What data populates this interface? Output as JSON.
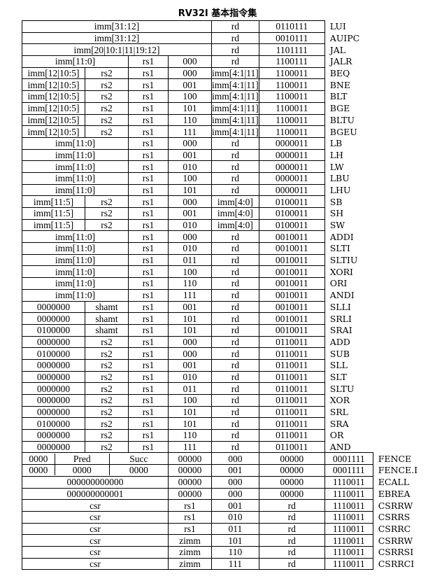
{
  "title": "RV32I 基本指令集",
  "rows": [
    [
      {
        "t": "imm[31:12]",
        "span": 4
      },
      {
        "t": "rd"
      },
      {
        "t": "0110111"
      },
      {
        "t": "LUI"
      }
    ],
    [
      {
        "t": "imm[31:12]",
        "span": 4
      },
      {
        "t": "rd"
      },
      {
        "t": "0010111"
      },
      {
        "t": "AUIPC"
      }
    ],
    [
      {
        "t": "imm[20|10:1|11|19:12]",
        "span": 4
      },
      {
        "t": "rd"
      },
      {
        "t": "1101111"
      },
      {
        "t": "JAL"
      }
    ],
    [
      {
        "t": "imm[11:0]",
        "span": 2
      },
      {
        "t": "rs1"
      },
      {
        "t": "000"
      },
      {
        "t": "rd"
      },
      {
        "t": "1100111"
      },
      {
        "t": "JALR"
      }
    ],
    [
      {
        "t": "imm[12|10:5]"
      },
      {
        "t": "rs2"
      },
      {
        "t": "rs1"
      },
      {
        "t": "000"
      },
      {
        "t": "imm[4:1|11]"
      },
      {
        "t": "1100011"
      },
      {
        "t": "BEQ"
      }
    ],
    [
      {
        "t": "imm[12|10:5]"
      },
      {
        "t": "rs2"
      },
      {
        "t": "rs1"
      },
      {
        "t": "001"
      },
      {
        "t": "imm[4:1|11]"
      },
      {
        "t": "1100011"
      },
      {
        "t": "BNE"
      }
    ],
    [
      {
        "t": "imm[12|10:5]"
      },
      {
        "t": "rs2"
      },
      {
        "t": "rs1"
      },
      {
        "t": "100"
      },
      {
        "t": "imm[4:1|11]"
      },
      {
        "t": "1100011"
      },
      {
        "t": "BLT"
      }
    ],
    [
      {
        "t": "imm[12|10:5]"
      },
      {
        "t": "rs2"
      },
      {
        "t": "rs1"
      },
      {
        "t": "101"
      },
      {
        "t": "imm[4:1|11]"
      },
      {
        "t": "1100011"
      },
      {
        "t": "BGE"
      }
    ],
    [
      {
        "t": "imm[12|10:5]"
      },
      {
        "t": "rs2"
      },
      {
        "t": "rs1"
      },
      {
        "t": "110"
      },
      {
        "t": "imm[4:1|11]"
      },
      {
        "t": "1100011"
      },
      {
        "t": "BLTU"
      }
    ],
    [
      {
        "t": "imm[12|10:5]"
      },
      {
        "t": "rs2"
      },
      {
        "t": "rs1"
      },
      {
        "t": "111"
      },
      {
        "t": "imm[4:1|11]"
      },
      {
        "t": "1100011"
      },
      {
        "t": "BGEU"
      }
    ],
    [
      {
        "t": "imm[11:0]",
        "span": 2
      },
      {
        "t": "rs1"
      },
      {
        "t": "000"
      },
      {
        "t": "rd"
      },
      {
        "t": "0000011"
      },
      {
        "t": "LB"
      }
    ],
    [
      {
        "t": "imm[11:0]",
        "span": 2
      },
      {
        "t": "rs1"
      },
      {
        "t": "001"
      },
      {
        "t": "rd"
      },
      {
        "t": "0000011"
      },
      {
        "t": "LH"
      }
    ],
    [
      {
        "t": "imm[11:0]",
        "span": 2
      },
      {
        "t": "rs1"
      },
      {
        "t": "010"
      },
      {
        "t": "rd"
      },
      {
        "t": "0000011"
      },
      {
        "t": "LW"
      }
    ],
    [
      {
        "t": "imm[11:0]",
        "span": 2
      },
      {
        "t": "rs1"
      },
      {
        "t": "100"
      },
      {
        "t": "rd"
      },
      {
        "t": "0000011"
      },
      {
        "t": "LBU"
      }
    ],
    [
      {
        "t": "imm[11:0]",
        "span": 2
      },
      {
        "t": "rs1"
      },
      {
        "t": "101"
      },
      {
        "t": "rd"
      },
      {
        "t": "0000011"
      },
      {
        "t": "LHU"
      }
    ],
    [
      {
        "t": "imm[11:5]"
      },
      {
        "t": "rs2"
      },
      {
        "t": "rs1"
      },
      {
        "t": "000"
      },
      {
        "t": "imm[4:0]"
      },
      {
        "t": "0100011"
      },
      {
        "t": "SB"
      }
    ],
    [
      {
        "t": "imm[11:5]"
      },
      {
        "t": "rs2"
      },
      {
        "t": "rs1"
      },
      {
        "t": "001"
      },
      {
        "t": "imm[4:0]"
      },
      {
        "t": "0100011"
      },
      {
        "t": "SH"
      }
    ],
    [
      {
        "t": "imm[11:5]"
      },
      {
        "t": "rs2"
      },
      {
        "t": "rs1"
      },
      {
        "t": "010"
      },
      {
        "t": "imm[4:0]"
      },
      {
        "t": "0100011"
      },
      {
        "t": "SW"
      }
    ],
    [
      {
        "t": "imm[11:0]",
        "span": 2
      },
      {
        "t": "rs1"
      },
      {
        "t": "000"
      },
      {
        "t": "rd"
      },
      {
        "t": "0010011"
      },
      {
        "t": "ADDI"
      }
    ],
    [
      {
        "t": "imm[11:0]",
        "span": 2
      },
      {
        "t": "rs1"
      },
      {
        "t": "010"
      },
      {
        "t": "rd"
      },
      {
        "t": "0010011"
      },
      {
        "t": "SLTI"
      }
    ],
    [
      {
        "t": "imm[11:0]",
        "span": 2
      },
      {
        "t": "rs1"
      },
      {
        "t": "011"
      },
      {
        "t": "rd"
      },
      {
        "t": "0010011"
      },
      {
        "t": "SLTIU"
      }
    ],
    [
      {
        "t": "imm[11:0]",
        "span": 2
      },
      {
        "t": "rs1"
      },
      {
        "t": "100"
      },
      {
        "t": "rd"
      },
      {
        "t": "0010011"
      },
      {
        "t": "XORI"
      }
    ],
    [
      {
        "t": "imm[11:0]",
        "span": 2
      },
      {
        "t": "rs1"
      },
      {
        "t": "110"
      },
      {
        "t": "rd"
      },
      {
        "t": "0010011"
      },
      {
        "t": "ORI"
      }
    ],
    [
      {
        "t": "imm[11:0]",
        "span": 2
      },
      {
        "t": "rs1"
      },
      {
        "t": "111"
      },
      {
        "t": "rd"
      },
      {
        "t": "0010011"
      },
      {
        "t": "ANDI"
      }
    ],
    [
      {
        "t": "0000000"
      },
      {
        "t": "shamt"
      },
      {
        "t": "rs1"
      },
      {
        "t": "001"
      },
      {
        "t": "rd"
      },
      {
        "t": "0010011"
      },
      {
        "t": "SLLI"
      }
    ],
    [
      {
        "t": "0000000"
      },
      {
        "t": "shamt"
      },
      {
        "t": "rs1"
      },
      {
        "t": "101"
      },
      {
        "t": "rd"
      },
      {
        "t": "0010011"
      },
      {
        "t": "SRLI"
      }
    ],
    [
      {
        "t": "0100000"
      },
      {
        "t": "shamt"
      },
      {
        "t": "rs1"
      },
      {
        "t": "101"
      },
      {
        "t": "rd"
      },
      {
        "t": "0010011"
      },
      {
        "t": "SRAI"
      }
    ],
    [
      {
        "t": "0000000"
      },
      {
        "t": "rs2"
      },
      {
        "t": "rs1"
      },
      {
        "t": "000"
      },
      {
        "t": "rd"
      },
      {
        "t": "0110011"
      },
      {
        "t": "ADD"
      }
    ],
    [
      {
        "t": "0100000"
      },
      {
        "t": "rs2"
      },
      {
        "t": "rs1"
      },
      {
        "t": "000"
      },
      {
        "t": "rd"
      },
      {
        "t": "0110011"
      },
      {
        "t": "SUB"
      }
    ],
    [
      {
        "t": "0000000"
      },
      {
        "t": "rs2"
      },
      {
        "t": "rs1"
      },
      {
        "t": "001"
      },
      {
        "t": "rd"
      },
      {
        "t": "0110011"
      },
      {
        "t": "SLL"
      }
    ],
    [
      {
        "t": "0000000"
      },
      {
        "t": "rs2"
      },
      {
        "t": "rs1"
      },
      {
        "t": "010"
      },
      {
        "t": "rd"
      },
      {
        "t": "0110011"
      },
      {
        "t": "SLT"
      }
    ],
    [
      {
        "t": "0000000"
      },
      {
        "t": "rs2"
      },
      {
        "t": "rs1"
      },
      {
        "t": "011"
      },
      {
        "t": "rd"
      },
      {
        "t": "0110011"
      },
      {
        "t": "SLTU"
      }
    ],
    [
      {
        "t": "0000000"
      },
      {
        "t": "rs2"
      },
      {
        "t": "rs1"
      },
      {
        "t": "100"
      },
      {
        "t": "rd"
      },
      {
        "t": "0110011"
      },
      {
        "t": "XOR"
      }
    ],
    [
      {
        "t": "0000000"
      },
      {
        "t": "rs2"
      },
      {
        "t": "rs1"
      },
      {
        "t": "101"
      },
      {
        "t": "rd"
      },
      {
        "t": "0110011"
      },
      {
        "t": "SRL"
      }
    ],
    [
      {
        "t": "0100000"
      },
      {
        "t": "rs2"
      },
      {
        "t": "rs1"
      },
      {
        "t": "101"
      },
      {
        "t": "rd"
      },
      {
        "t": "0110011"
      },
      {
        "t": "SRA"
      }
    ],
    [
      {
        "t": "0000000"
      },
      {
        "t": "rs2"
      },
      {
        "t": "rs1"
      },
      {
        "t": "110"
      },
      {
        "t": "rd"
      },
      {
        "t": "0110011"
      },
      {
        "t": "OR"
      }
    ],
    [
      {
        "t": "0000000"
      },
      {
        "t": "rs2"
      },
      {
        "t": "rs1"
      },
      {
        "t": "111"
      },
      {
        "t": "rd"
      },
      {
        "t": "0110011"
      },
      {
        "t": "AND"
      }
    ],
    [
      {
        "t": "0000",
        "w": 45
      },
      {
        "t": "Pred",
        "w": 76
      },
      {
        "t": "Succ",
        "w": 82
      },
      {
        "t": "00000"
      },
      {
        "t": "000"
      },
      {
        "t": "00000"
      },
      {
        "t": "0001111"
      },
      {
        "t": "FENCE"
      }
    ],
    [
      {
        "t": "0000",
        "w": 45
      },
      {
        "t": "0000",
        "w": 76
      },
      {
        "t": "0000",
        "w": 82
      },
      {
        "t": "00000"
      },
      {
        "t": "001"
      },
      {
        "t": "00000"
      },
      {
        "t": "0001111"
      },
      {
        "t": "FENCE.I"
      }
    ],
    [
      {
        "t": "000000000000",
        "span": 3
      },
      {
        "t": "00000"
      },
      {
        "t": "000"
      },
      {
        "t": "00000"
      },
      {
        "t": "1110011"
      },
      {
        "t": "ECALL"
      }
    ],
    [
      {
        "t": "000000000001",
        "span": 3
      },
      {
        "t": "00000"
      },
      {
        "t": "000"
      },
      {
        "t": "00000"
      },
      {
        "t": "1110011"
      },
      {
        "t": "EBREA"
      }
    ],
    [
      {
        "t": "csr",
        "span": 3
      },
      {
        "t": "rs1"
      },
      {
        "t": "001"
      },
      {
        "t": "rd"
      },
      {
        "t": "1110011"
      },
      {
        "t": "CSRRW"
      }
    ],
    [
      {
        "t": "csr",
        "span": 3
      },
      {
        "t": "rs1"
      },
      {
        "t": "010"
      },
      {
        "t": "rd"
      },
      {
        "t": "1110011"
      },
      {
        "t": "CSRRS"
      }
    ],
    [
      {
        "t": "csr",
        "span": 3
      },
      {
        "t": "rs1"
      },
      {
        "t": "011"
      },
      {
        "t": "rd"
      },
      {
        "t": "1110011"
      },
      {
        "t": "CSRRC"
      }
    ],
    [
      {
        "t": "csr",
        "span": 3
      },
      {
        "t": "zimm"
      },
      {
        "t": "101"
      },
      {
        "t": "rd"
      },
      {
        "t": "1110011"
      },
      {
        "t": "CSRRW"
      }
    ],
    [
      {
        "t": "csr",
        "span": 3
      },
      {
        "t": "zimm"
      },
      {
        "t": "110"
      },
      {
        "t": "rd"
      },
      {
        "t": "1110011"
      },
      {
        "t": "CSRRSI"
      }
    ],
    [
      {
        "t": "csr",
        "span": 3
      },
      {
        "t": "zimm"
      },
      {
        "t": "111"
      },
      {
        "t": "rd"
      },
      {
        "t": "1110011"
      },
      {
        "t": "CSRRCI"
      }
    ]
  ]
}
